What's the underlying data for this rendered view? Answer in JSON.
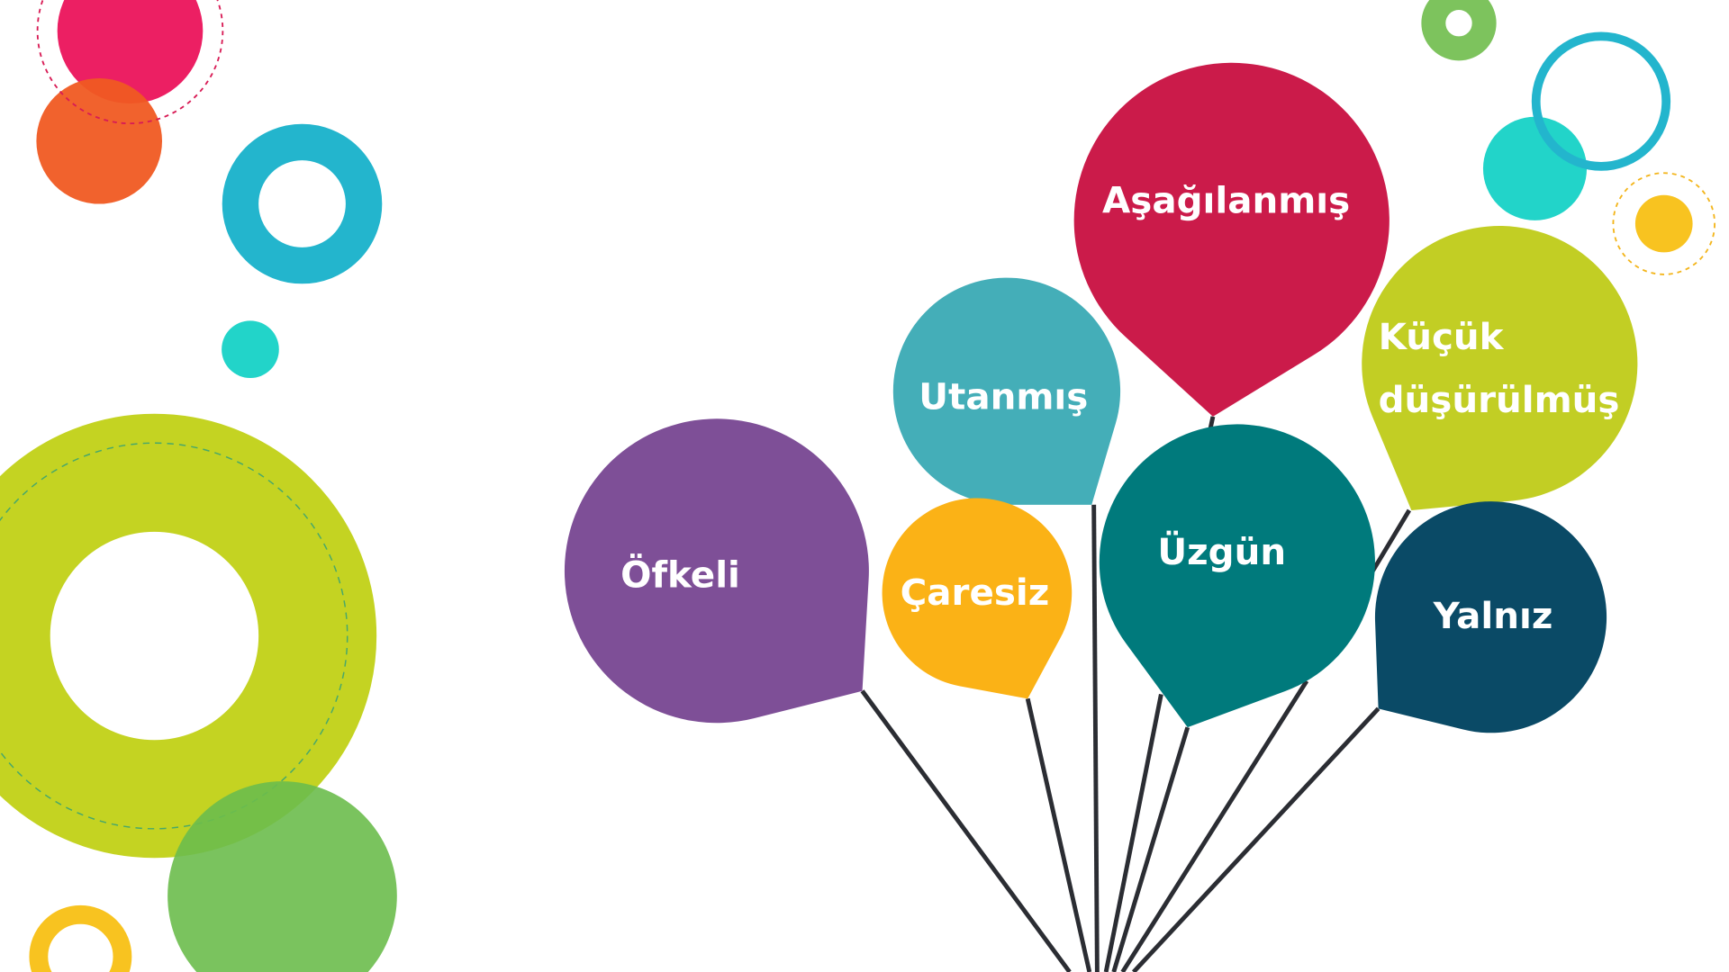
{
  "balloons": [
    {
      "label": [
        "Aşağılanmış"
      ]
    },
    {
      "label": [
        "Utanmış"
      ]
    },
    {
      "label": [
        "Öfkeli"
      ]
    },
    {
      "label": [
        "Çaresiz"
      ]
    },
    {
      "label": [
        "Üzgün"
      ]
    },
    {
      "label": [
        "Küçük",
        "düşürülmüş"
      ]
    },
    {
      "label": [
        "Yalnız"
      ]
    }
  ]
}
